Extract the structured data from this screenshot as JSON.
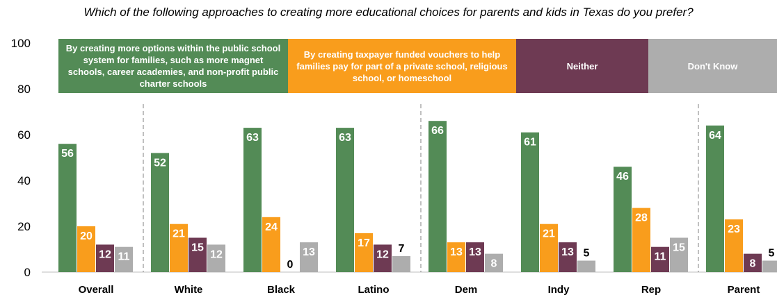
{
  "chart_data": {
    "type": "bar",
    "title": "Which of the following approaches to creating more educational choices for parents and kids in Texas do you prefer?",
    "categories": [
      "Overall",
      "White",
      "Black",
      "Latino",
      "Dem",
      "Indy",
      "Rep",
      "Parent"
    ],
    "series": [
      {
        "name": "By creating more options within the public school system for families, such as more magnet schools, career academies, and non-profit public charter schools",
        "color": "#538b56",
        "values": [
          56,
          52,
          63,
          63,
          66,
          61,
          46,
          64
        ]
      },
      {
        "name": "By creating taxpayer funded vouchers to help families pay for part of a private school, religious school, or homeschool",
        "color": "#f99d1c",
        "values": [
          20,
          21,
          24,
          17,
          13,
          21,
          28,
          23
        ]
      },
      {
        "name": "Neither",
        "color": "#6e3a53",
        "values": [
          12,
          15,
          0,
          12,
          13,
          13,
          11,
          8
        ]
      },
      {
        "name": "Don't Know",
        "color": "#adadad",
        "values": [
          11,
          12,
          13,
          7,
          8,
          5,
          15,
          5
        ]
      }
    ],
    "ylim": [
      0,
      100
    ],
    "yticks": [
      0,
      20,
      40,
      60,
      80,
      100
    ],
    "legend_position": "top",
    "grid": false,
    "group_separators_after": [
      "Overall",
      "Latino",
      "Rep"
    ]
  }
}
